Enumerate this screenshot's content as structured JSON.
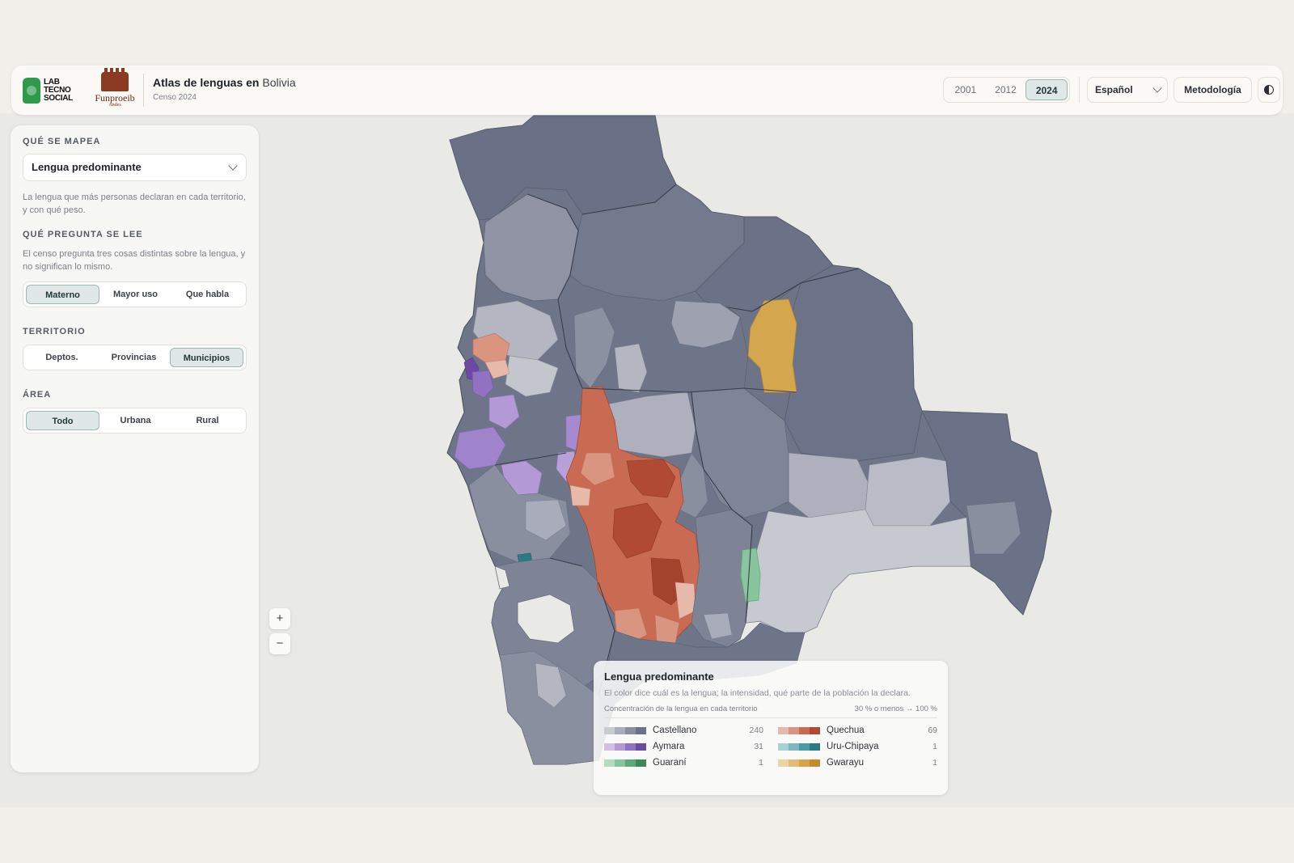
{
  "header": {
    "logo_lab_lines": [
      "LAB",
      "TECNO",
      "SOCIAL"
    ],
    "logo_funproeib": "Funproeib",
    "logo_funproeib_sub": "Andes",
    "title_bold": "Atlas de lenguas en",
    "title_place": "Bolivia",
    "subtitle": "Censo 2024",
    "years": [
      "2001",
      "2012",
      "2024"
    ],
    "active_year": "2024",
    "language": "Español",
    "methodology": "Metodología",
    "theme_icon": "contrast-icon"
  },
  "sidebar": {
    "what_label": "QUÉ SE MAPEA",
    "what_value": "Lengua predominante",
    "what_desc": "La lengua que más personas declaran en cada territorio, y con qué peso.",
    "question_label": "QUÉ PREGUNTA SE LEE",
    "question_desc": "El censo pregunta tres cosas distintas sobre la lengua, y no significan lo mismo.",
    "question_options": [
      "Materno",
      "Mayor uso",
      "Que habla"
    ],
    "question_active": "Materno",
    "territory_label": "TERRITORIO",
    "territory_options": [
      "Deptos.",
      "Provincias",
      "Municipios"
    ],
    "territory_active": "Municipios",
    "area_label": "ÁREA",
    "area_options": [
      "Todo",
      "Urbana",
      "Rural"
    ],
    "area_active": "Todo"
  },
  "zoom": {
    "in": "+",
    "out": "−"
  },
  "legend": {
    "title": "Lengua predominante",
    "desc": "El color dice cuál es la lengua; la intensidad, qué parte de la población la declara.",
    "scale_label": "Concentración de la lengua en cada territorio",
    "scale_range": "30 % o menos → 100 %",
    "items": [
      {
        "name": "Castellano",
        "count": "240",
        "colors": [
          "#c9cbd3",
          "#a9adbb",
          "#8a8fa0",
          "#6b7186"
        ]
      },
      {
        "name": "Quechua",
        "count": "69",
        "colors": [
          "#e6b9aa",
          "#d99580",
          "#c86b52",
          "#b04a33"
        ]
      },
      {
        "name": "Aymara",
        "count": "31",
        "colors": [
          "#cfc0e4",
          "#b39ad6",
          "#9071c2",
          "#6c4aa4"
        ]
      },
      {
        "name": "Uru-Chipaya",
        "count": "1",
        "colors": [
          "#a8d1d4",
          "#7ab8bd",
          "#4c9aa2",
          "#2b7a84"
        ]
      },
      {
        "name": "Guaraní",
        "count": "1",
        "colors": [
          "#b3dcc0",
          "#88c59c",
          "#5fa978",
          "#3d8a58"
        ]
      },
      {
        "name": "Gwarayu",
        "count": "1",
        "colors": [
          "#ecd4a4",
          "#e2bc74",
          "#d7a44b",
          "#c58a2c"
        ]
      }
    ]
  }
}
